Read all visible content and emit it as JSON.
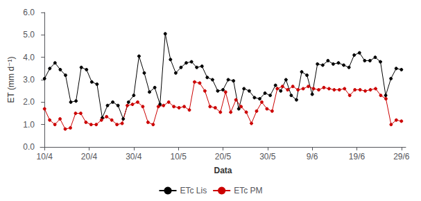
{
  "chart_data": {
    "type": "line",
    "xlabel": "Data",
    "ylabel": "ET (mm d⁻¹)",
    "xlim": [
      -1,
      84
    ],
    "xticks": [
      {
        "value": 0,
        "label": "10/4"
      },
      {
        "value": 10.375,
        "label": "20/4"
      },
      {
        "value": 20.75,
        "label": "30/4"
      },
      {
        "value": 31.125,
        "label": "10/5"
      },
      {
        "value": 41.5,
        "label": "20/5"
      },
      {
        "value": 51.875,
        "label": "30/5"
      },
      {
        "value": 62.25,
        "label": "9/6"
      },
      {
        "value": 72.625,
        "label": "19/6"
      },
      {
        "value": 83,
        "label": "29/6"
      }
    ],
    "ylim": [
      0.0,
      6.0
    ],
    "yticks": [
      {
        "value": 0,
        "label": "0.0"
      },
      {
        "value": 1,
        "label": "1.0"
      },
      {
        "value": 2,
        "label": "2.0"
      },
      {
        "value": 3,
        "label": "3.0"
      },
      {
        "value": 4,
        "label": "4.0"
      },
      {
        "value": 5,
        "label": "5.0"
      },
      {
        "value": 6,
        "label": "6.0"
      }
    ],
    "grid": false,
    "legend": "bottom",
    "series": [
      {
        "name": "ETc Lis",
        "color": "#000000",
        "marker": "circle",
        "x": [
          0,
          1.2206,
          2.4412,
          3.6618,
          4.8824,
          6.1029,
          7.3235,
          8.5441,
          9.7647,
          10.9853,
          12.2059,
          13.4265,
          14.6471,
          15.8676,
          17.0882,
          18.3088,
          19.5294,
          20.75,
          21.9706,
          23.1912,
          24.4118,
          25.6324,
          26.8529,
          28.0735,
          29.2941,
          30.5147,
          31.7353,
          32.9559,
          34.1765,
          35.3971,
          36.6176,
          37.8382,
          39.0588,
          40.2794,
          41.5,
          42.7206,
          43.9412,
          45.1618,
          46.3824,
          47.6029,
          48.8235,
          50.0441,
          51.2647,
          52.4853,
          53.7059,
          54.9265,
          56.1471,
          57.3676,
          58.5882,
          59.8088,
          61.0294,
          62.25,
          63.4706,
          64.6912,
          65.9118,
          67.1324,
          68.3529,
          69.5735,
          70.7941,
          72.0147,
          73.2353,
          74.4559,
          75.6765,
          76.8971,
          78.1176,
          79.3382,
          80.5588,
          81.7794,
          83
        ],
        "values": [
          3.05,
          3.5,
          3.75,
          3.45,
          3.2,
          2.0,
          2.05,
          3.55,
          3.45,
          2.9,
          2.8,
          1.3,
          1.85,
          2.0,
          1.85,
          1.25,
          2.0,
          2.3,
          4.05,
          3.3,
          2.45,
          2.65,
          1.9,
          5.05,
          3.9,
          3.3,
          3.55,
          3.75,
          3.8,
          3.55,
          3.6,
          3.1,
          3.0,
          2.5,
          2.55,
          3.0,
          2.95,
          1.7,
          2.6,
          2.5,
          2.2,
          2.15,
          2.4,
          2.3,
          2.75,
          2.5,
          3.0,
          2.3,
          2.1,
          3.35,
          3.2,
          2.35,
          3.7,
          3.65,
          3.85,
          3.7,
          3.75,
          3.65,
          3.55,
          4.1,
          4.2,
          3.85,
          3.85,
          4.0,
          3.8,
          2.3,
          3.05,
          3.5,
          3.45
        ]
      },
      {
        "name": "ETc PM",
        "color": "#cc0000",
        "marker": "circle",
        "x": [
          0,
          1.2029,
          2.4058,
          3.6087,
          4.8116,
          6.0145,
          7.2174,
          8.4203,
          9.6232,
          10.8261,
          12.029,
          13.2319,
          14.4348,
          15.6377,
          16.8406,
          18.0435,
          19.2464,
          20.4493,
          21.6522,
          22.8551,
          24.058,
          25.2609,
          26.4638,
          27.6667,
          28.8696,
          30.0725,
          31.2754,
          32.4783,
          33.6812,
          34.8841,
          36.087,
          37.2899,
          38.4928,
          39.6957,
          40.8986,
          42.1014,
          43.3043,
          44.5072,
          45.7101,
          46.913,
          48.1159,
          49.3188,
          50.5217,
          51.7246,
          52.9275,
          54.1304,
          55.3333,
          56.5362,
          57.7391,
          58.942,
          60.1449,
          61.3478,
          62.5507,
          63.7536,
          64.9565,
          66.1594,
          67.3623,
          68.5652,
          69.7681,
          70.971,
          72.1739,
          73.3768,
          74.5797,
          75.7826,
          76.9855,
          78.1884,
          79.3913,
          80.5942,
          81.7971,
          83
        ],
        "values": [
          1.7,
          1.2,
          1.0,
          1.25,
          0.8,
          0.85,
          1.5,
          1.5,
          1.1,
          1.0,
          1.0,
          1.2,
          1.35,
          1.2,
          1.0,
          1.05,
          1.85,
          1.9,
          2.0,
          1.8,
          1.1,
          1.0,
          1.8,
          1.85,
          2.0,
          1.8,
          1.75,
          1.8,
          1.65,
          2.9,
          2.85,
          2.5,
          1.8,
          1.75,
          1.55,
          2.45,
          1.55,
          2.1,
          1.8,
          1.55,
          1.05,
          1.6,
          2.0,
          1.7,
          1.6,
          2.6,
          2.7,
          2.55,
          2.7,
          2.55,
          2.6,
          2.7,
          2.6,
          2.55,
          2.65,
          2.6,
          2.55,
          2.55,
          2.6,
          2.3,
          2.55,
          2.55,
          2.5,
          2.55,
          2.6,
          2.3,
          2.15,
          1.0,
          1.2,
          1.15
        ]
      }
    ]
  }
}
